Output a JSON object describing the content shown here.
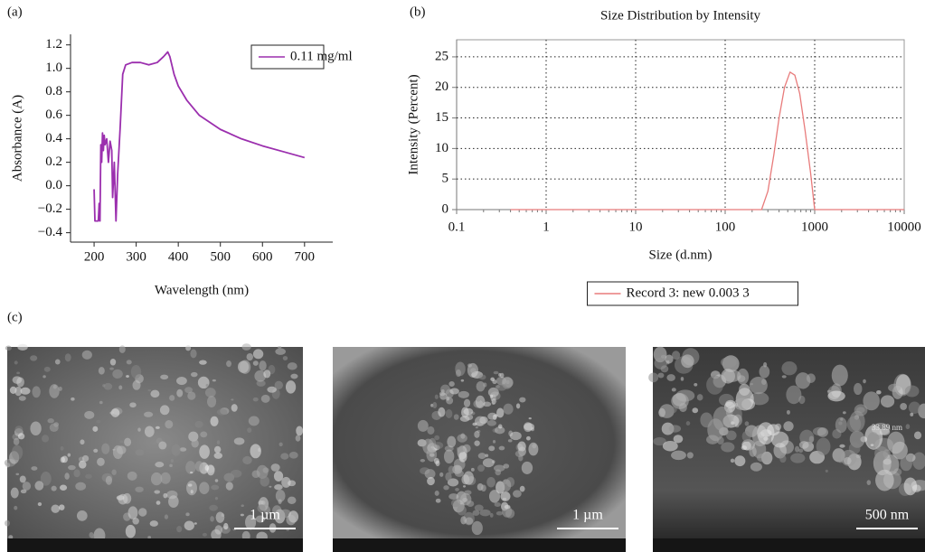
{
  "panel_labels": [
    "(a)",
    "(b)",
    "(c)"
  ],
  "chart_data": [
    {
      "type": "line",
      "x_label": "Wavelength (nm)",
      "y_label": "Absorbance (A)",
      "x": [
        200,
        202,
        210,
        212,
        214,
        216,
        218,
        220,
        222,
        224,
        226,
        230,
        234,
        238,
        242,
        244,
        248,
        252,
        256,
        262,
        268,
        275,
        290,
        310,
        330,
        350,
        365,
        375,
        380,
        390,
        400,
        420,
        450,
        500,
        550,
        600,
        650,
        700
      ],
      "series": [
        {
          "name": "0.11 mg/ml",
          "color": "#9b2fae",
          "values": [
            -0.03,
            -0.3,
            -0.3,
            -0.15,
            -0.3,
            0.35,
            0.2,
            0.45,
            0.3,
            0.43,
            0.35,
            0.4,
            0.2,
            0.38,
            0.3,
            -0.1,
            0.2,
            -0.3,
            0.1,
            0.5,
            0.95,
            1.03,
            1.05,
            1.05,
            1.03,
            1.05,
            1.1,
            1.14,
            1.1,
            0.95,
            0.85,
            0.73,
            0.6,
            0.48,
            0.4,
            0.34,
            0.29,
            0.24
          ]
        }
      ],
      "xlim": [
        144,
        767
      ],
      "ylim": [
        -0.48,
        1.29
      ],
      "xticks": [
        200,
        300,
        400,
        500,
        600,
        700
      ],
      "yticks": [
        {
          "value": -0.4,
          "label": "−0.4"
        },
        {
          "value": -0.2,
          "label": "−0.2"
        },
        {
          "value": 0,
          "label": "0.0"
        },
        0.2,
        0.4,
        0.6,
        0.8,
        {
          "value": 1,
          "label": "1.0"
        },
        1.2
      ],
      "grid": false,
      "legend": "top-right"
    },
    {
      "type": "line",
      "title": "Size Distribution by Intensity",
      "x_label": "Size (d.nm)",
      "y_label": "Intensity (Percent)",
      "x": [
        0.4,
        255,
        300,
        350,
        400,
        460,
        530,
        600,
        680,
        780,
        900,
        1000,
        1100,
        10000
      ],
      "series": [
        {
          "name": "Record 3: new 0.003 3",
          "color": "#e87b7b",
          "values": [
            0,
            0,
            3,
            9,
            15,
            20,
            22.5,
            22,
            19,
            13,
            6,
            0,
            0,
            0
          ]
        }
      ],
      "xlim": [
        0.1,
        10000
      ],
      "ylim": [
        0,
        27.8
      ],
      "xscale": "log",
      "xticks": [
        0.1,
        1,
        10,
        100,
        1000,
        10000
      ],
      "yticks": [
        0,
        5,
        10,
        15,
        20,
        25
      ],
      "grid": true,
      "legend": "bottom"
    }
  ],
  "images": [
    {
      "scale_bar": "1 µm"
    },
    {
      "scale_bar": "1 µm"
    },
    {
      "scale_bar": "500 nm",
      "annotation": "33.89 nm"
    }
  ]
}
